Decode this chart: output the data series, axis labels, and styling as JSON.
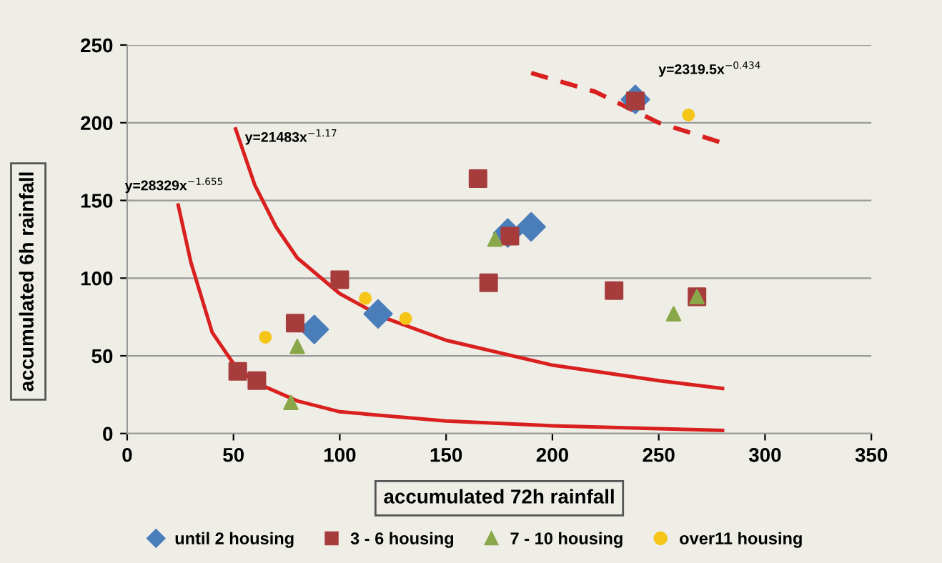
{
  "chart_data": {
    "type": "scatter",
    "xlabel": "accumulated 72h rainfall",
    "ylabel": "accumulated 6h rainfall",
    "xlim": [
      0,
      350
    ],
    "ylim": [
      0,
      250
    ],
    "xticks": [
      0,
      50,
      100,
      150,
      200,
      250,
      300,
      350
    ],
    "yticks": [
      0,
      50,
      100,
      150,
      200,
      250
    ],
    "grid": "y",
    "legend": "bottom",
    "series": [
      {
        "name": "until 2 housing",
        "color": "#4a7ebb",
        "marker": "diamond",
        "x": [
          88,
          118,
          179,
          190,
          239
        ],
        "values": [
          67,
          77,
          129,
          133,
          215
        ]
      },
      {
        "name": "3 - 6 housing",
        "color": "#a63c3c",
        "marker": "square",
        "x": [
          52,
          61,
          79,
          100,
          165,
          170,
          180,
          229,
          239,
          268
        ],
        "values": [
          40,
          34,
          71,
          99,
          164,
          97,
          127,
          92,
          214,
          88
        ]
      },
      {
        "name": "7 - 10 housing",
        "color": "#8aa84a",
        "marker": "triangle",
        "x": [
          77,
          80,
          173,
          257,
          268
        ],
        "values": [
          20,
          56,
          125,
          77,
          88
        ]
      },
      {
        "name": "over11 housing",
        "color": "#f5c518",
        "marker": "circle",
        "x": [
          65,
          112,
          131,
          264
        ],
        "values": [
          62,
          87,
          74,
          205
        ]
      },
      {
        "type": "line",
        "color": "#d9201f",
        "line_style": "solid",
        "x": [
          24,
          30,
          40,
          50,
          60,
          80,
          100,
          150,
          200,
          280
        ],
        "values": [
          147,
          110,
          65,
          45,
          33,
          21,
          14,
          8,
          5,
          2
        ]
      },
      {
        "type": "line",
        "color": "#d9201f",
        "line_style": "solid",
        "x": [
          51,
          60,
          70,
          80,
          100,
          120,
          150,
          200,
          250,
          280
        ],
        "values": [
          196,
          160,
          133,
          113,
          90,
          75,
          60,
          44,
          34,
          29
        ]
      },
      {
        "type": "line",
        "color": "#d9201f",
        "line_style": "dashed",
        "x": [
          190,
          220,
          250,
          280
        ],
        "values": [
          232,
          220,
          200,
          187
        ]
      }
    ],
    "annotations": [
      "y=28329x$^{−1.655}$",
      "y=21483x$^{−1.17}$",
      "y=2319.5x$^{−0.434}$"
    ]
  }
}
